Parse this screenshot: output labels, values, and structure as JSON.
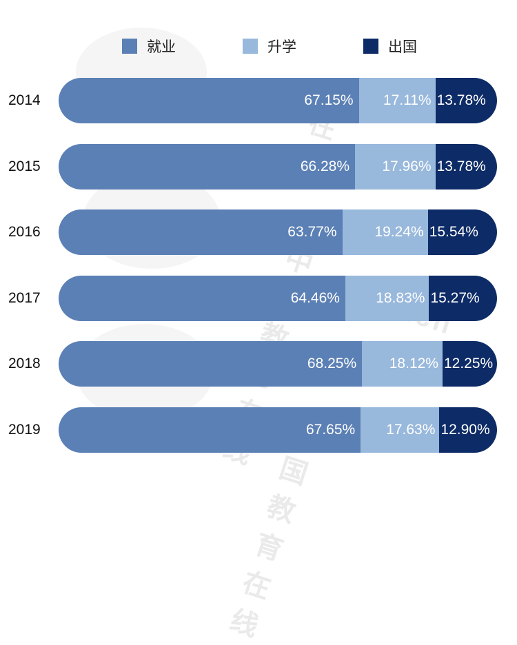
{
  "legend": [
    {
      "label": "就业",
      "color": "#5b80b5"
    },
    {
      "label": "升学",
      "color": "#98b8dc"
    },
    {
      "label": "出国",
      "color": "#0d2b66"
    }
  ],
  "rows": [
    {
      "year": "2014",
      "emp": "67.15%",
      "study": "17.11%",
      "abroad": "13.78%"
    },
    {
      "year": "2015",
      "emp": "66.28%",
      "study": "17.96%",
      "abroad": "13.78%"
    },
    {
      "year": "2016",
      "emp": "63.77%",
      "study": "19.24%",
      "abroad": "15.54%"
    },
    {
      "year": "2017",
      "emp": "64.46%",
      "study": "18.83%",
      "abroad": "15.27%"
    },
    {
      "year": "2018",
      "emp": "68.25%",
      "study": "18.12%",
      "abroad": "12.25%"
    },
    {
      "year": "2019",
      "emp": "67.65%",
      "study": "17.63%",
      "abroad": "12.90%"
    }
  ],
  "chart_data": {
    "type": "bar",
    "orientation": "horizontal",
    "stacked": true,
    "title": "",
    "categories": [
      "2014",
      "2015",
      "2016",
      "2017",
      "2018",
      "2019"
    ],
    "series": [
      {
        "name": "就业",
        "color": "#5b80b5",
        "values": [
          67.15,
          66.28,
          63.77,
          64.46,
          68.25,
          67.65
        ]
      },
      {
        "name": "升学",
        "color": "#98b8dc",
        "values": [
          17.11,
          17.96,
          19.24,
          18.83,
          18.12,
          17.63
        ]
      },
      {
        "name": "出国",
        "color": "#0d2b66",
        "values": [
          13.78,
          13.78,
          15.54,
          15.27,
          12.25,
          12.9
        ]
      }
    ],
    "xlabel": "",
    "ylabel": "",
    "value_format": "percent",
    "legend_position": "top",
    "grid": false,
    "watermark": "中国教育在线 www.eol.cn"
  }
}
